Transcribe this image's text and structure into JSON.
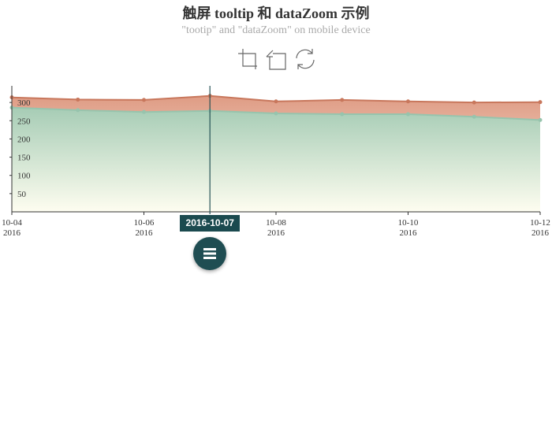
{
  "title": "触屏 tooltip 和 dataZoom 示例",
  "subtitle": "\"tootip\" and \"dataZoom\" on mobile device",
  "toolbox": {
    "icons": [
      "data-zoom-icon",
      "data-zoom-back-icon",
      "restore-icon"
    ],
    "color": "#666666"
  },
  "axis_pointer": {
    "label": "2016-10-07",
    "color": "#1b4a4f"
  },
  "handle": {
    "icon": "menu-icon",
    "color": "#1f4d52"
  },
  "chart_data": {
    "type": "area",
    "x": [
      "2016-10-04",
      "2016-10-05",
      "2016-10-06",
      "2016-10-07",
      "2016-10-08",
      "2016-10-09",
      "2016-10-10",
      "2016-10-11",
      "2016-10-12"
    ],
    "x_ticks": [
      {
        "x": "2016-10-04",
        "line1": "10-04",
        "line2": "2016"
      },
      {
        "x": "2016-10-06",
        "line1": "10-06",
        "line2": "2016"
      },
      {
        "x": "2016-10-08",
        "line1": "10-08",
        "line2": "2016"
      },
      {
        "x": "2016-10-10",
        "line1": "10-10",
        "line2": "2016"
      },
      {
        "x": "2016-10-12",
        "line1": "10-12",
        "line2": "2016"
      }
    ],
    "y_ticks": [
      50,
      100,
      150,
      200,
      250,
      300
    ],
    "ylim": [
      0,
      350
    ],
    "series": [
      {
        "values": [
          314,
          308,
          307,
          318,
          303,
          307,
          303,
          300,
          301
        ],
        "color": "#c8775c",
        "fill": "#e5b39f"
      },
      {
        "values": [
          286,
          279,
          274,
          277,
          270,
          268,
          268,
          261,
          252
        ],
        "color": "#97c4ad",
        "fill": "#9fcdb4"
      }
    ]
  }
}
